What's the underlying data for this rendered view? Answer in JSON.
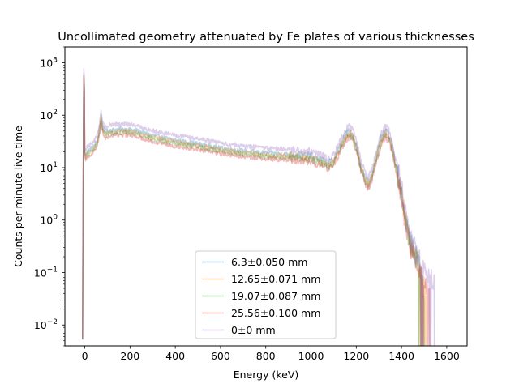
{
  "chart_data": {
    "type": "line",
    "title": "Uncollimated geometry attenuated by Fe plates of various thicknesses",
    "xlabel": "Energy (keV)",
    "ylabel": "Counts per minute live time",
    "xlim": [
      -88,
      1690
    ],
    "ylim": [
      0.004,
      2000
    ],
    "yscale": "log",
    "grid": false,
    "legend_position": "lower center",
    "x_ticks": [
      {
        "value": 0,
        "label": "0"
      },
      {
        "value": 200,
        "label": "200"
      },
      {
        "value": 400,
        "label": "400"
      },
      {
        "value": 600,
        "label": "600"
      },
      {
        "value": 800,
        "label": "800"
      },
      {
        "value": 1000,
        "label": "1000"
      },
      {
        "value": 1200,
        "label": "1200"
      },
      {
        "value": 1400,
        "label": "1400"
      },
      {
        "value": 1600,
        "label": "1600"
      }
    ],
    "y_ticks": [
      {
        "value": 0.01,
        "base": "10",
        "exp": "−2"
      },
      {
        "value": 0.1,
        "base": "10",
        "exp": "−1"
      },
      {
        "value": 1,
        "base": "10",
        "exp": "0"
      },
      {
        "value": 10,
        "base": "10",
        "exp": "1"
      },
      {
        "value": 100,
        "base": "10",
        "exp": "2"
      },
      {
        "value": 1000,
        "base": "10",
        "exp": "3"
      }
    ],
    "series": [
      {
        "name": "6.3±0.050 mm",
        "color": "#1f77b4",
        "scale": 0.95,
        "cutoff": 1495,
        "x": [
          -10,
          -5,
          -2,
          0,
          5,
          10,
          20,
          40,
          55,
          65,
          72,
          80,
          90,
          110,
          150,
          200,
          230,
          260,
          300,
          400,
          500,
          600,
          700,
          800,
          900,
          1000,
          1040,
          1080,
          1100,
          1120,
          1140,
          1160,
          1172,
          1185,
          1200,
          1220,
          1240,
          1255,
          1270,
          1290,
          1310,
          1330,
          1345,
          1360,
          1380,
          1400,
          1420,
          1440,
          1460,
          1480,
          1495
        ],
        "y": [
          0.005,
          950,
          300,
          20,
          19,
          21,
          23,
          27,
          35,
          60,
          100,
          60,
          50,
          55,
          57,
          56,
          54,
          48,
          43,
          35,
          30,
          25,
          22,
          20,
          19,
          17.5,
          15,
          13,
          15,
          22,
          35,
          48,
          52,
          45,
          28,
          12,
          6.5,
          5.5,
          8,
          18,
          38,
          52,
          45,
          25,
          10,
          3.5,
          1.0,
          0.4,
          0.25,
          0.15,
          0.05
        ]
      },
      {
        "name": "12.65±0.071 mm",
        "color": "#ff7f0e",
        "scale": 0.88,
        "cutoff": 1510,
        "x": [
          -10,
          -5,
          -2,
          0,
          5,
          10,
          20,
          40,
          55,
          65,
          72,
          80,
          90,
          110,
          150,
          200,
          230,
          260,
          300,
          400,
          500,
          600,
          700,
          800,
          900,
          1000,
          1040,
          1080,
          1100,
          1120,
          1140,
          1160,
          1172,
          1185,
          1200,
          1220,
          1240,
          1255,
          1270,
          1290,
          1310,
          1330,
          1345,
          1360,
          1380,
          1400,
          1420,
          1440,
          1460,
          1480,
          1510
        ],
        "y": [
          0.005,
          800,
          300,
          20,
          19,
          21,
          23,
          27,
          35,
          60,
          100,
          60,
          50,
          55,
          57,
          56,
          54,
          48,
          43,
          35,
          30,
          25,
          22,
          20,
          19,
          17.5,
          15,
          13,
          15,
          22,
          35,
          48,
          52,
          45,
          28,
          12,
          6.5,
          5.5,
          8,
          18,
          38,
          52,
          45,
          25,
          10,
          3.5,
          1.0,
          0.4,
          0.25,
          0.15,
          0.05
        ]
      },
      {
        "name": "19.07±0.087 mm",
        "color": "#2ca02c",
        "scale": 0.82,
        "cutoff": 1500,
        "x": [
          -10,
          -5,
          -2,
          0,
          5,
          10,
          20,
          40,
          55,
          65,
          72,
          80,
          90,
          110,
          150,
          200,
          230,
          260,
          300,
          400,
          500,
          600,
          700,
          800,
          900,
          1000,
          1040,
          1080,
          1100,
          1120,
          1140,
          1160,
          1172,
          1185,
          1200,
          1220,
          1240,
          1255,
          1270,
          1290,
          1310,
          1330,
          1345,
          1360,
          1380,
          1400,
          1420,
          1440,
          1460,
          1480,
          1500
        ],
        "y": [
          0.005,
          750,
          300,
          20,
          19,
          21,
          23,
          27,
          35,
          60,
          100,
          60,
          50,
          55,
          57,
          56,
          54,
          48,
          43,
          35,
          30,
          25,
          22,
          20,
          19,
          17.5,
          15,
          13,
          15,
          22,
          35,
          48,
          52,
          45,
          28,
          12,
          6.5,
          5.5,
          8,
          18,
          38,
          52,
          45,
          25,
          10,
          3.5,
          1.0,
          0.4,
          0.25,
          0.15,
          0.05
        ]
      },
      {
        "name": "25.56±0.100 mm",
        "color": "#d62728",
        "scale": 0.74,
        "cutoff": 1525,
        "x": [
          -10,
          -5,
          -2,
          0,
          5,
          10,
          20,
          40,
          55,
          65,
          72,
          80,
          90,
          110,
          150,
          200,
          230,
          260,
          300,
          400,
          500,
          600,
          700,
          800,
          900,
          1000,
          1040,
          1080,
          1100,
          1120,
          1140,
          1160,
          1172,
          1185,
          1200,
          1220,
          1240,
          1255,
          1270,
          1290,
          1310,
          1330,
          1345,
          1360,
          1380,
          1400,
          1420,
          1440,
          1460,
          1480,
          1525
        ],
        "y": [
          0.005,
          700,
          300,
          20,
          19,
          21,
          23,
          27,
          35,
          60,
          100,
          60,
          50,
          55,
          57,
          56,
          54,
          48,
          43,
          35,
          30,
          25,
          22,
          20,
          19,
          17.5,
          15,
          13,
          15,
          22,
          35,
          48,
          52,
          45,
          28,
          12,
          6.5,
          5.5,
          8,
          18,
          38,
          52,
          45,
          25,
          10,
          3.5,
          1.0,
          0.4,
          0.25,
          0.15,
          0.05
        ]
      },
      {
        "name": "0±0 mm",
        "color": "#9467bd",
        "scale": 1.18,
        "cutoff": 1545,
        "x": [
          -10,
          -5,
          -2,
          0,
          5,
          10,
          20,
          40,
          55,
          65,
          72,
          80,
          90,
          110,
          150,
          200,
          230,
          260,
          300,
          400,
          500,
          600,
          700,
          800,
          900,
          1000,
          1040,
          1080,
          1100,
          1120,
          1140,
          1160,
          1172,
          1185,
          1200,
          1220,
          1240,
          1255,
          1270,
          1290,
          1310,
          1330,
          1345,
          1360,
          1380,
          1400,
          1420,
          1440,
          1460,
          1480,
          1545
        ],
        "y": [
          0.005,
          1100,
          300,
          20,
          19,
          21,
          23,
          27,
          35,
          60,
          100,
          60,
          50,
          55,
          57,
          56,
          54,
          48,
          43,
          35,
          30,
          25,
          22,
          20,
          19,
          17.5,
          15,
          13,
          15,
          22,
          35,
          48,
          52,
          45,
          28,
          12,
          6.5,
          5.5,
          8,
          18,
          38,
          52,
          45,
          25,
          10,
          3.5,
          1.0,
          0.4,
          0.25,
          0.15,
          0.05
        ]
      }
    ]
  }
}
